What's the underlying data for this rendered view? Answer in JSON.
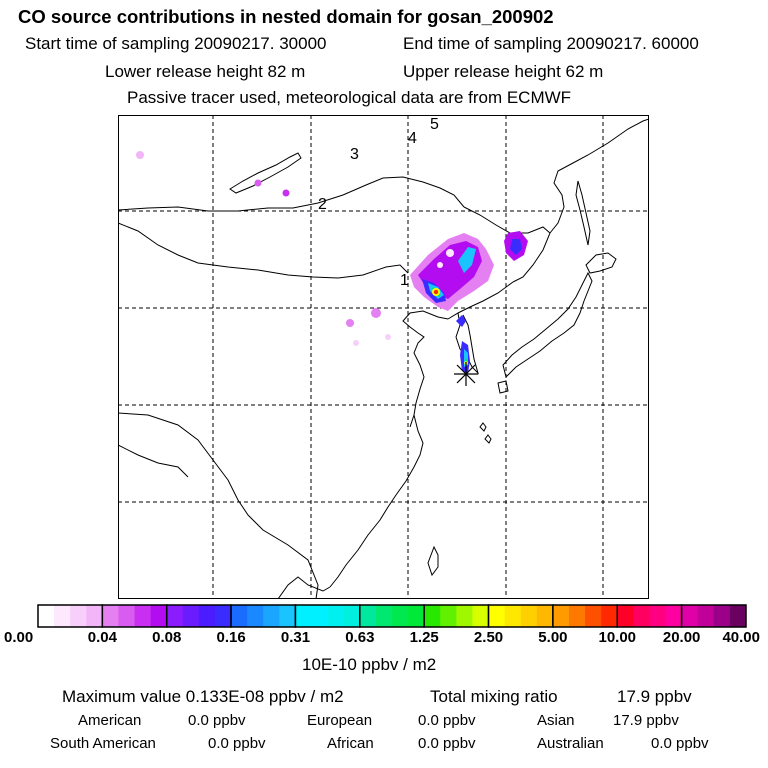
{
  "title": "CO  source contributions in nested domain for gosan_200902",
  "header": {
    "start_label": "Start time of sampling 20090217. 30000",
    "end_label": "End time of sampling 20090217. 60000",
    "lower_height": "Lower release height   82 m",
    "upper_height": "Upper release height   62 m",
    "tracer_note": "Passive tracer used, meteorological data are from ECMWF"
  },
  "map": {
    "trajectory_labels": [
      "1",
      "2",
      "3",
      "4",
      "5"
    ],
    "receptor_marker": "asterisk-icon"
  },
  "colorbar": {
    "ticks": [
      "0.00",
      "0.04",
      "0.08",
      "0.16",
      "0.31",
      "0.63",
      "1.25",
      "2.50",
      "5.00",
      "10.00",
      "20.00",
      "40.00"
    ],
    "unit_label": "10E-10 ppbv / m2",
    "colors": [
      [
        "#ffffff",
        "#fde8fd",
        "#f8cffb",
        "#f2b5f8"
      ],
      [
        "#e480f2",
        "#d95cf0",
        "#c92ff0",
        "#b30cf0"
      ],
      [
        "#8a1cff",
        "#6a1cff",
        "#4a1cff",
        "#3a2cff"
      ],
      [
        "#1a6cff",
        "#1a88ff",
        "#1aa6ff",
        "#1ac4ff"
      ],
      [
        "#00f0ff",
        "#00f0ff",
        "#00f0f0",
        "#00f0e0"
      ],
      [
        "#00e89e",
        "#00e870",
        "#00e850",
        "#00e838"
      ],
      [
        "#28e800",
        "#60f000",
        "#a0f800",
        "#d8ff00"
      ],
      [
        "#ffff00",
        "#ffe800",
        "#ffd000",
        "#ffb800"
      ],
      [
        "#ff9a00",
        "#ff7800",
        "#ff5000",
        "#ff2800"
      ],
      [
        "#ff0028",
        "#ff0060",
        "#ff0080",
        "#ff00a0"
      ],
      [
        "#e000a8",
        "#c00098",
        "#9a0088",
        "#6a0060"
      ]
    ]
  },
  "footer": {
    "maximum_value": "Maximum value  0.133E-08 ppbv / m2",
    "total_mixing_label": "Total mixing ratio",
    "total_mixing_value": "17.9 ppbv",
    "regions": [
      {
        "name": "American",
        "value": "0.0 ppbv"
      },
      {
        "name": "European",
        "value": "0.0 ppbv"
      },
      {
        "name": "Asian",
        "value": "17.9 ppbv"
      },
      {
        "name": "South American",
        "value": "0.0 ppbv"
      },
      {
        "name": "African",
        "value": "0.0 ppbv"
      },
      {
        "name": "Australian",
        "value": "0.0 ppbv"
      }
    ]
  },
  "plume_colors": {
    "low": "#f2b5f8",
    "mid": "#b30cf0",
    "blue": "#3a2cff",
    "cyan": "#1ac4ff",
    "green": "#00e850",
    "yellow": "#ffff00",
    "red": "#ff2800"
  }
}
